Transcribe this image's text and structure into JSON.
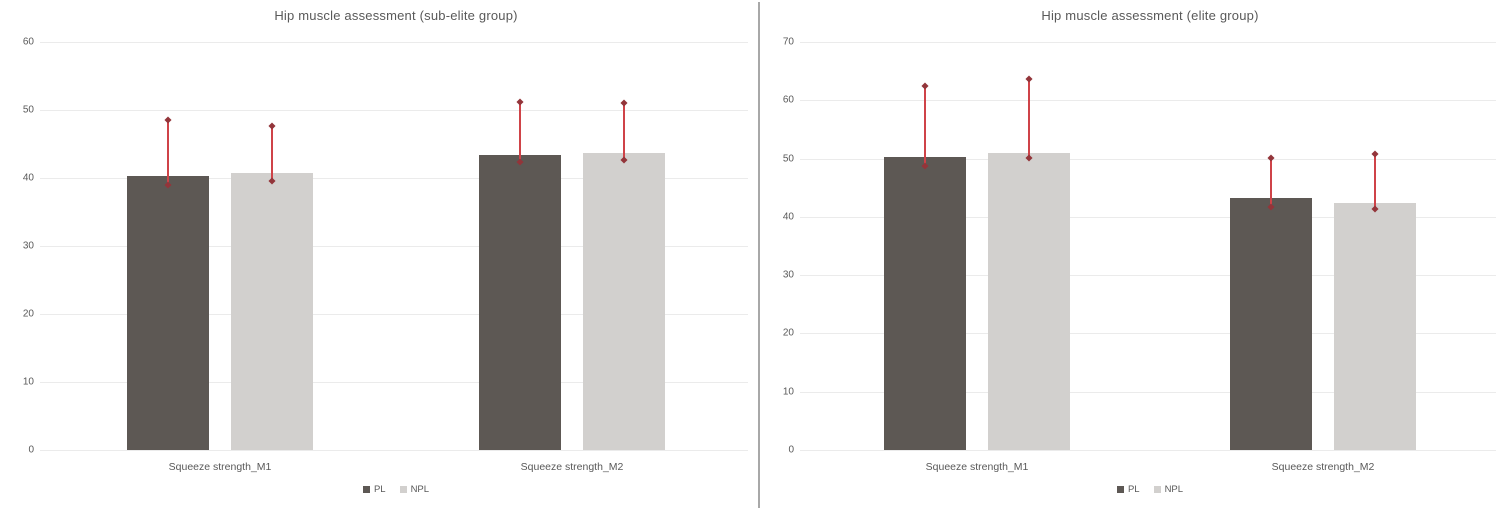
{
  "figure": {
    "divider_color": "#a8a8a8",
    "background": "#ffffff",
    "text_color": "#595959",
    "gridline_color": "#ebebeb"
  },
  "chart_data": [
    {
      "type": "bar",
      "title": "Hip muscle assessment (sub-elite group)",
      "categories": [
        "Squeeze strength_M1",
        "Squeeze strength_M2"
      ],
      "series": [
        {
          "name": "PL",
          "color": "#5d5854",
          "values": [
            40.3,
            43.4
          ],
          "error_low": [
            39.0,
            42.4
          ],
          "error_high": [
            48.5,
            51.2
          ]
        },
        {
          "name": "NPL",
          "color": "#d2d0ce",
          "values": [
            40.7,
            43.7
          ],
          "error_low": [
            39.6,
            42.7
          ],
          "error_high": [
            47.6,
            51.0
          ]
        }
      ],
      "xlabel": "",
      "ylabel": "",
      "ylim": [
        0,
        60
      ],
      "yticks": [
        0,
        10,
        20,
        30,
        40,
        50,
        60
      ],
      "grid": true,
      "legend_position": "bottom",
      "error_bar_color": "#cf4348",
      "error_cap_color": "#93353a"
    },
    {
      "type": "bar",
      "title": "Hip muscle assessment (elite group)",
      "categories": [
        "Squeeze strength_M1",
        "Squeeze strength_M2"
      ],
      "series": [
        {
          "name": "PL",
          "color": "#5d5854",
          "values": [
            50.2,
            43.3
          ],
          "error_low": [
            48.7,
            41.7
          ],
          "error_high": [
            62.5,
            50.1
          ]
        },
        {
          "name": "NPL",
          "color": "#d2d0ce",
          "values": [
            51.0,
            42.4
          ],
          "error_low": [
            50.1,
            41.4
          ],
          "error_high": [
            63.6,
            50.7
          ]
        }
      ],
      "xlabel": "",
      "ylabel": "",
      "ylim": [
        0,
        70
      ],
      "yticks": [
        0,
        10,
        20,
        30,
        40,
        50,
        60,
        70
      ],
      "grid": true,
      "legend_position": "bottom",
      "error_bar_color": "#cf4348",
      "error_cap_color": "#93353a"
    }
  ]
}
